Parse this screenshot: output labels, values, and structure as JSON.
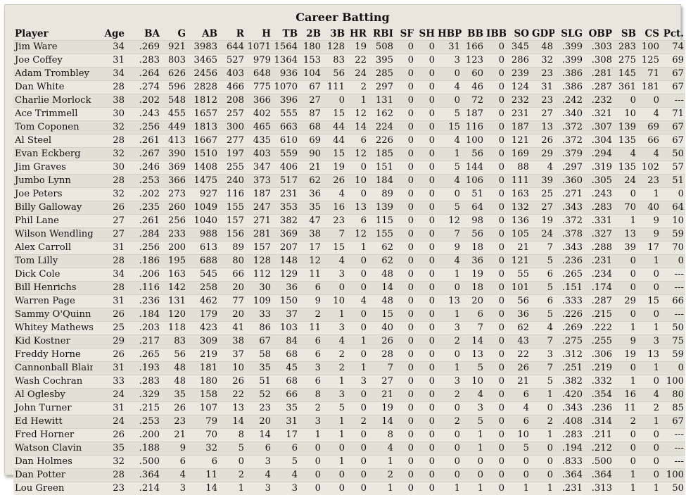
{
  "title": "Career Batting",
  "columns": [
    "Player",
    "Age",
    "BA",
    "G",
    "AB",
    "R",
    "H",
    "TB",
    "2B",
    "3B",
    "HR",
    "RBI",
    "SF",
    "SH",
    "HBP",
    "BB",
    "IBB",
    "SO",
    "GDP",
    "SLG",
    "OBP",
    "SB",
    "CS",
    "Pct."
  ],
  "rows": [
    [
      "Jim Ware",
      "34",
      ".269",
      "921",
      "3983",
      "644",
      "1071",
      "1564",
      "180",
      "128",
      "19",
      "508",
      "0",
      "0",
      "31",
      "166",
      "0",
      "345",
      "48",
      ".399",
      ".303",
      "283",
      "100",
      "74"
    ],
    [
      "Joe Coffey",
      "31",
      ".283",
      "803",
      "3465",
      "527",
      "979",
      "1364",
      "153",
      "83",
      "22",
      "395",
      "0",
      "0",
      "3",
      "123",
      "0",
      "286",
      "32",
      ".399",
      ".308",
      "275",
      "125",
      "69"
    ],
    [
      "Adam Trombley",
      "34",
      ".264",
      "626",
      "2456",
      "403",
      "648",
      "936",
      "104",
      "56",
      "24",
      "285",
      "0",
      "0",
      "0",
      "60",
      "0",
      "239",
      "23",
      ".386",
      ".281",
      "145",
      "71",
      "67"
    ],
    [
      "Dan White",
      "28",
      ".274",
      "596",
      "2828",
      "466",
      "775",
      "1070",
      "67",
      "111",
      "2",
      "297",
      "0",
      "0",
      "4",
      "46",
      "0",
      "124",
      "31",
      ".386",
      ".287",
      "361",
      "181",
      "67"
    ],
    [
      "Charlie Morlock",
      "38",
      ".202",
      "548",
      "1812",
      "208",
      "366",
      "396",
      "27",
      "0",
      "1",
      "131",
      "0",
      "0",
      "0",
      "72",
      "0",
      "232",
      "23",
      ".242",
      ".232",
      "0",
      "0",
      "---"
    ],
    [
      "Ace Trimmell",
      "30",
      ".243",
      "455",
      "1657",
      "257",
      "402",
      "555",
      "87",
      "15",
      "12",
      "162",
      "0",
      "0",
      "5",
      "187",
      "0",
      "231",
      "27",
      ".340",
      ".321",
      "10",
      "4",
      "71"
    ],
    [
      "Tom Coponen",
      "32",
      ".256",
      "449",
      "1813",
      "300",
      "465",
      "663",
      "68",
      "44",
      "14",
      "224",
      "0",
      "0",
      "15",
      "116",
      "0",
      "187",
      "13",
      ".372",
      ".307",
      "139",
      "69",
      "67"
    ],
    [
      "Al Steel",
      "28",
      ".261",
      "413",
      "1667",
      "277",
      "435",
      "610",
      "69",
      "44",
      "6",
      "226",
      "0",
      "0",
      "4",
      "100",
      "0",
      "121",
      "26",
      ".372",
      ".304",
      "135",
      "66",
      "67"
    ],
    [
      "Evan Eckberg",
      "32",
      ".267",
      "390",
      "1510",
      "197",
      "403",
      "559",
      "90",
      "15",
      "12",
      "185",
      "0",
      "0",
      "1",
      "56",
      "0",
      "169",
      "29",
      ".379",
      ".294",
      "4",
      "4",
      "50"
    ],
    [
      "Jim Graves",
      "30",
      ".246",
      "369",
      "1408",
      "255",
      "347",
      "406",
      "21",
      "19",
      "0",
      "151",
      "0",
      "0",
      "5",
      "144",
      "0",
      "88",
      "4",
      ".297",
      ".319",
      "135",
      "102",
      "57"
    ],
    [
      "Jumbo Lynn",
      "28",
      ".253",
      "366",
      "1475",
      "240",
      "373",
      "517",
      "62",
      "26",
      "10",
      "184",
      "0",
      "0",
      "4",
      "106",
      "0",
      "111",
      "39",
      ".360",
      ".305",
      "24",
      "23",
      "51"
    ],
    [
      "Joe Peters",
      "32",
      ".202",
      "273",
      "927",
      "116",
      "187",
      "231",
      "36",
      "4",
      "0",
      "89",
      "0",
      "0",
      "0",
      "51",
      "0",
      "163",
      "25",
      ".271",
      ".243",
      "0",
      "1",
      "0"
    ],
    [
      "Billy Galloway",
      "26",
      ".235",
      "260",
      "1049",
      "155",
      "247",
      "353",
      "35",
      "16",
      "13",
      "139",
      "0",
      "0",
      "5",
      "64",
      "0",
      "132",
      "27",
      ".343",
      ".283",
      "70",
      "40",
      "64"
    ],
    [
      "Phil Lane",
      "27",
      ".261",
      "256",
      "1040",
      "157",
      "271",
      "382",
      "47",
      "23",
      "6",
      "115",
      "0",
      "0",
      "12",
      "98",
      "0",
      "136",
      "19",
      ".372",
      ".331",
      "1",
      "9",
      "10"
    ],
    [
      "Wilson Wendling",
      "27",
      ".284",
      "233",
      "988",
      "156",
      "281",
      "369",
      "38",
      "7",
      "12",
      "155",
      "0",
      "0",
      "7",
      "56",
      "0",
      "105",
      "24",
      ".378",
      ".327",
      "13",
      "9",
      "59"
    ],
    [
      "Alex Carroll",
      "31",
      ".256",
      "200",
      "613",
      "89",
      "157",
      "207",
      "17",
      "15",
      "1",
      "62",
      "0",
      "0",
      "9",
      "18",
      "0",
      "21",
      "7",
      ".343",
      ".288",
      "39",
      "17",
      "70"
    ],
    [
      "Tom Lilly",
      "28",
      ".186",
      "195",
      "688",
      "80",
      "128",
      "148",
      "12",
      "4",
      "0",
      "62",
      "0",
      "0",
      "4",
      "36",
      "0",
      "121",
      "5",
      ".236",
      ".231",
      "0",
      "1",
      "0"
    ],
    [
      "Dick Cole",
      "34",
      ".206",
      "163",
      "545",
      "66",
      "112",
      "129",
      "11",
      "3",
      "0",
      "48",
      "0",
      "0",
      "1",
      "19",
      "0",
      "55",
      "6",
      ".265",
      ".234",
      "0",
      "0",
      "---"
    ],
    [
      "Bill Henrichs",
      "28",
      ".116",
      "142",
      "258",
      "20",
      "30",
      "36",
      "6",
      "0",
      "0",
      "14",
      "0",
      "0",
      "0",
      "18",
      "0",
      "101",
      "5",
      ".151",
      ".174",
      "0",
      "0",
      "---"
    ],
    [
      "Warren Page",
      "31",
      ".236",
      "131",
      "462",
      "77",
      "109",
      "150",
      "9",
      "10",
      "4",
      "48",
      "0",
      "0",
      "13",
      "20",
      "0",
      "56",
      "6",
      ".333",
      ".287",
      "29",
      "15",
      "66"
    ],
    [
      "Sammy O'Quinn",
      "26",
      ".184",
      "120",
      "179",
      "20",
      "33",
      "37",
      "2",
      "1",
      "0",
      "15",
      "0",
      "0",
      "1",
      "6",
      "0",
      "36",
      "5",
      ".226",
      ".215",
      "0",
      "0",
      "---"
    ],
    [
      "Whitey Mathews",
      "25",
      ".203",
      "118",
      "423",
      "41",
      "86",
      "103",
      "11",
      "3",
      "0",
      "40",
      "0",
      "0",
      "3",
      "7",
      "0",
      "62",
      "4",
      ".269",
      ".222",
      "1",
      "1",
      "50"
    ],
    [
      "Kid Kostner",
      "29",
      ".217",
      "83",
      "309",
      "38",
      "67",
      "84",
      "6",
      "4",
      "1",
      "26",
      "0",
      "0",
      "2",
      "14",
      "0",
      "43",
      "7",
      ".275",
      ".255",
      "9",
      "3",
      "75"
    ],
    [
      "Freddy Horne",
      "26",
      ".265",
      "56",
      "219",
      "37",
      "58",
      "68",
      "6",
      "2",
      "0",
      "28",
      "0",
      "0",
      "0",
      "13",
      "0",
      "22",
      "3",
      ".312",
      ".306",
      "19",
      "13",
      "59"
    ],
    [
      "Cannonball Blair",
      "31",
      ".193",
      "48",
      "181",
      "10",
      "35",
      "45",
      "3",
      "2",
      "1",
      "7",
      "0",
      "0",
      "1",
      "5",
      "0",
      "26",
      "7",
      ".251",
      ".219",
      "0",
      "1",
      "0"
    ],
    [
      "Wash Cochran",
      "33",
      ".283",
      "48",
      "180",
      "26",
      "51",
      "68",
      "6",
      "1",
      "3",
      "27",
      "0",
      "0",
      "3",
      "10",
      "0",
      "21",
      "5",
      ".382",
      ".332",
      "1",
      "0",
      "100"
    ],
    [
      "Al Oglesby",
      "24",
      ".329",
      "35",
      "158",
      "22",
      "52",
      "66",
      "8",
      "3",
      "0",
      "21",
      "0",
      "0",
      "2",
      "4",
      "0",
      "6",
      "1",
      ".420",
      ".354",
      "16",
      "4",
      "80"
    ],
    [
      "John Turner",
      "31",
      ".215",
      "26",
      "107",
      "13",
      "23",
      "35",
      "2",
      "5",
      "0",
      "19",
      "0",
      "0",
      "0",
      "3",
      "0",
      "4",
      "0",
      ".343",
      ".236",
      "11",
      "2",
      "85"
    ],
    [
      "Ed Hewitt",
      "24",
      ".253",
      "23",
      "79",
      "14",
      "20",
      "31",
      "3",
      "1",
      "2",
      "14",
      "0",
      "0",
      "2",
      "5",
      "0",
      "6",
      "2",
      ".408",
      ".314",
      "2",
      "1",
      "67"
    ],
    [
      "Fred Horner",
      "26",
      ".200",
      "21",
      "70",
      "8",
      "14",
      "17",
      "1",
      "1",
      "0",
      "8",
      "0",
      "0",
      "0",
      "1",
      "0",
      "10",
      "1",
      ".283",
      ".211",
      "0",
      "0",
      "---"
    ],
    [
      "Watson Clavin",
      "35",
      ".188",
      "9",
      "32",
      "5",
      "6",
      "6",
      "0",
      "0",
      "0",
      "4",
      "0",
      "0",
      "0",
      "1",
      "0",
      "5",
      "0",
      ".194",
      ".212",
      "0",
      "0",
      "---"
    ],
    [
      "Dan Holmes",
      "32",
      ".500",
      "6",
      "6",
      "0",
      "3",
      "5",
      "0",
      "1",
      "0",
      "1",
      "0",
      "0",
      "0",
      "0",
      "0",
      "0",
      "0",
      ".833",
      ".500",
      "0",
      "0",
      "---"
    ],
    [
      "Dan Potter",
      "28",
      ".364",
      "4",
      "11",
      "2",
      "4",
      "4",
      "0",
      "0",
      "0",
      "2",
      "0",
      "0",
      "0",
      "0",
      "0",
      "0",
      "0",
      ".364",
      ".364",
      "1",
      "0",
      "100"
    ],
    [
      "Lou Green",
      "23",
      ".214",
      "3",
      "14",
      "1",
      "3",
      "3",
      "0",
      "0",
      "0",
      "1",
      "0",
      "0",
      "1",
      "1",
      "0",
      "1",
      "1",
      ".231",
      ".313",
      "1",
      "1",
      "50"
    ]
  ]
}
